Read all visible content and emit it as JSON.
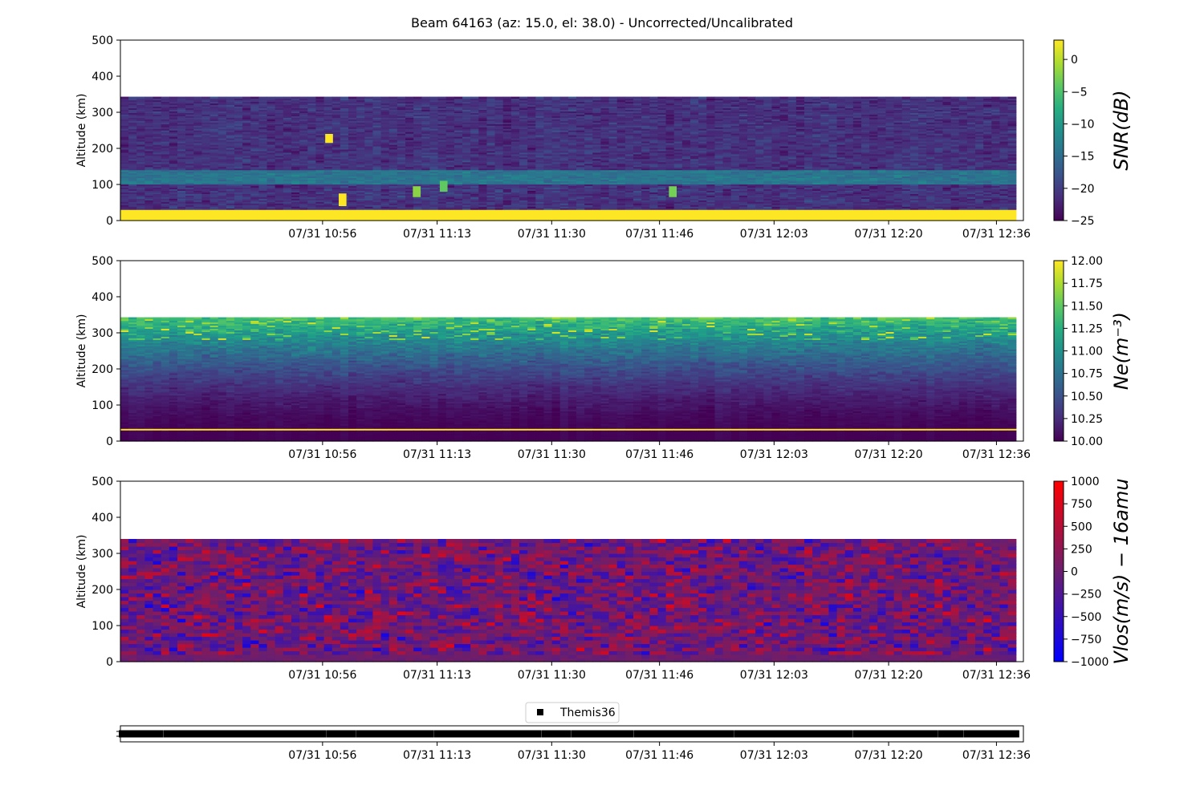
{
  "figure": {
    "title": "Beam 64163 (az: 15.0, el: 38.0) - Uncorrected/Uncalibrated"
  },
  "chart_data": [
    {
      "type": "heatmap",
      "name": "snr",
      "ylabel": "Altitude (km)",
      "ylim": [
        0,
        500
      ],
      "y_ticks": [
        "0",
        "100",
        "200",
        "300",
        "400",
        "500"
      ],
      "x_ticks": [
        "07/31 10:56",
        "07/31 11:13",
        "07/31 11:30",
        "07/31 11:46",
        "07/31 12:03",
        "07/31 12:20",
        "07/31 12:36"
      ],
      "data_altitude_range": [
        0,
        340
      ],
      "colorbar": {
        "label": "SNR(dB)",
        "range": [
          -25,
          3
        ],
        "ticks": [
          "0",
          "−5",
          "−10",
          "−15",
          "−20",
          "−25"
        ],
        "tick_values": [
          0,
          -5,
          -10,
          -15,
          -20,
          -25
        ],
        "colormap": "viridis"
      },
      "features": [
        {
          "kind": "constant-band",
          "altitude_range": [
            0,
            30
          ],
          "value": 3
        },
        {
          "kind": "enhanced-layer",
          "altitude_range": [
            100,
            140
          ],
          "value": -12
        },
        {
          "kind": "patch",
          "time": "10:57",
          "altitude_range": [
            215,
            240
          ],
          "value": 3
        },
        {
          "kind": "patch",
          "time": "10:59",
          "altitude_range": [
            40,
            75
          ],
          "value": 3
        },
        {
          "kind": "patch",
          "time": "11:10",
          "altitude_range": [
            65,
            95
          ],
          "value": -2
        },
        {
          "kind": "patch",
          "time": "11:14",
          "altitude_range": [
            80,
            110
          ],
          "value": -4
        },
        {
          "kind": "patch",
          "time": "11:48",
          "altitude_range": [
            65,
            95
          ],
          "value": -3
        }
      ]
    },
    {
      "type": "heatmap",
      "name": "ne",
      "ylabel": "Altitude (km)",
      "ylim": [
        0,
        500
      ],
      "y_ticks": [
        "0",
        "100",
        "200",
        "300",
        "400",
        "500"
      ],
      "x_ticks": [
        "07/31 10:56",
        "07/31 11:13",
        "07/31 11:30",
        "07/31 11:46",
        "07/31 12:03",
        "07/31 12:20",
        "07/31 12:36"
      ],
      "data_altitude_range": [
        0,
        340
      ],
      "colorbar": {
        "label": "Ne(m⁻³)",
        "range": [
          10,
          12
        ],
        "ticks": [
          "12.00",
          "11.75",
          "11.50",
          "11.25",
          "11.00",
          "10.75",
          "10.50",
          "10.25",
          "10.00"
        ],
        "tick_values": [
          12,
          11.75,
          11.5,
          11.25,
          11,
          10.75,
          10.5,
          10.25,
          10
        ],
        "colormap": "viridis"
      },
      "features": [
        {
          "kind": "constant-band",
          "altitude_range": [
            28,
            34
          ],
          "value": 12
        },
        {
          "kind": "increasing-with-altitude",
          "altitude_range": [
            0,
            340
          ],
          "value_range": [
            10.0,
            11.4
          ]
        }
      ]
    },
    {
      "type": "heatmap",
      "name": "vlos",
      "ylabel": "Altitude (km)",
      "ylim": [
        0,
        500
      ],
      "y_ticks": [
        "0",
        "100",
        "200",
        "300",
        "400",
        "500"
      ],
      "x_ticks": [
        "07/31 10:56",
        "07/31 11:13",
        "07/31 11:30",
        "07/31 11:46",
        "07/31 12:03",
        "07/31 12:20",
        "07/31 12:36"
      ],
      "data_altitude_range": [
        0,
        340
      ],
      "colorbar": {
        "label": "Vlos(m/s) − 16amu",
        "range": [
          -1000,
          1000
        ],
        "ticks": [
          "1000",
          "750",
          "500",
          "250",
          "0",
          "−250",
          "−500",
          "−750",
          "−1000"
        ],
        "tick_values": [
          1000,
          750,
          500,
          250,
          0,
          -250,
          -500,
          -750,
          -1000
        ],
        "colormap": "bwr"
      }
    },
    {
      "type": "scatter",
      "name": "timeline",
      "legend": "Themis36",
      "x_ticks": [
        "07/31 10:56",
        "07/31 11:13",
        "07/31 11:30",
        "07/31 11:46",
        "07/31 12:03",
        "07/31 12:20",
        "07/31 12:36"
      ],
      "marker": "square",
      "marker_color": "#000000"
    }
  ],
  "colors": {
    "axis": "#000000",
    "bwr_low": "#0000ff",
    "bwr_high": "#ff0000"
  }
}
